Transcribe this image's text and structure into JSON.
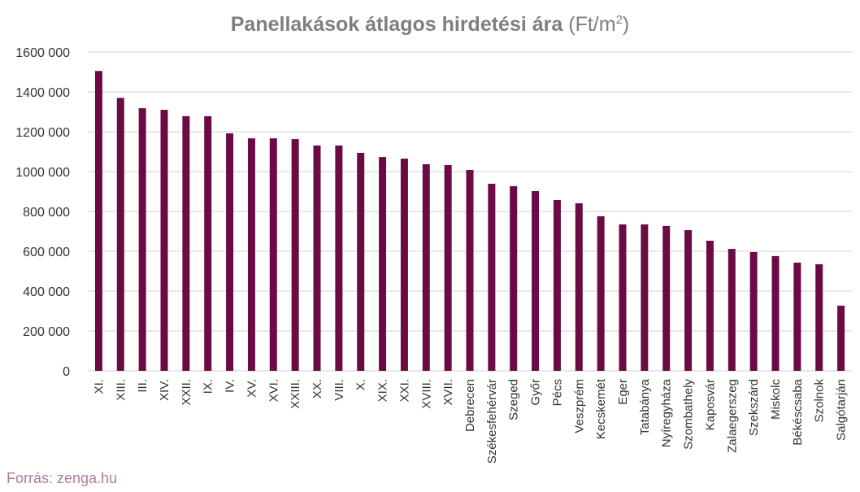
{
  "chart_data": {
    "type": "bar",
    "title_bold": "Panellakások átlagos hirdetési ára",
    "title_unit": "(Ft/m",
    "title_sup": "2",
    "title_close": ")",
    "source": "Forrás: zenga.hu",
    "ylim": [
      0,
      1600000
    ],
    "yticks": [
      0,
      200000,
      400000,
      600000,
      800000,
      1000000,
      1200000,
      1400000,
      1600000
    ],
    "ytick_labels": [
      "0",
      "200 000",
      "400 000",
      "600 000",
      "800 000",
      "1000 000",
      "1200 000",
      "1400 000",
      "1600 000"
    ],
    "grid": true,
    "bar_color": "#6b0a45",
    "categories": [
      "XI.",
      "XIII.",
      "III.",
      "XIV.",
      "XXII.",
      "IX.",
      "IV.",
      "XV.",
      "XVI.",
      "XXIII.",
      "XX.",
      "VIII.",
      "X.",
      "XIX.",
      "XXI.",
      "XVIII.",
      "XVII.",
      "Debrecen",
      "Székesfehérvár",
      "Szeged",
      "Győr",
      "Pécs",
      "Veszprém",
      "Kecskemét",
      "Eger",
      "Tatabánya",
      "Nyíregyháza",
      "Szombathely",
      "Kaposvár",
      "Zalaegerszeg",
      "Szekszárd",
      "Miskolc",
      "Békéscsaba",
      "Szolnok",
      "Salgótarján"
    ],
    "values": [
      1505000,
      1370000,
      1318000,
      1310000,
      1278000,
      1278000,
      1192000,
      1167000,
      1167000,
      1163000,
      1131000,
      1131000,
      1094000,
      1073000,
      1065000,
      1037000,
      1033000,
      1008000,
      939000,
      927000,
      902000,
      857000,
      841000,
      776000,
      735000,
      735000,
      727000,
      706000,
      653000,
      612000,
      596000,
      576000,
      543000,
      535000,
      327000
    ]
  }
}
